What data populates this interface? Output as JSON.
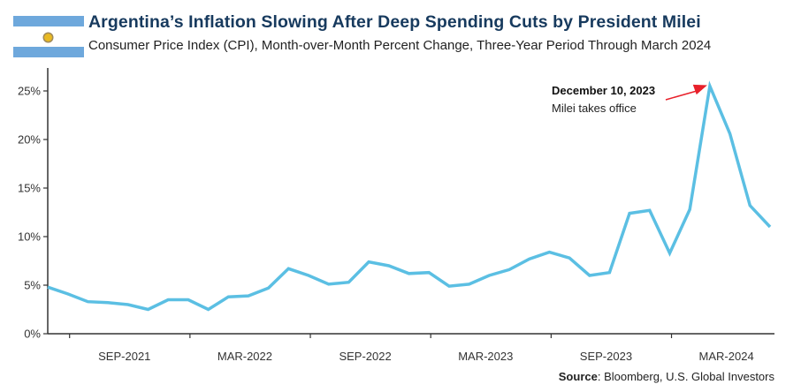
{
  "header": {
    "title": "Argentina’s Inflation Slowing After Deep Spending Cuts by President Milei",
    "subtitle": "Consumer Price Index (CPI), Month-over-Month Percent Change, Three-Year Period Through March 2024",
    "flag_icon": "argentina-flag-icon"
  },
  "colors": {
    "line": "#5bbfe3",
    "title": "#173a5e",
    "arrow": "#e8202a",
    "axis": "#333333",
    "flag_blue": "#6ea8dc",
    "flag_sun": "#e8b923"
  },
  "source": {
    "label": "Source",
    "text": ": Bloomberg, U.S. Global Investors"
  },
  "chart_data": {
    "type": "line",
    "title": "Argentina’s Inflation Slowing After Deep Spending Cuts by President Milei",
    "subtitle": "Consumer Price Index (CPI), Month-over-Month Percent Change, Three-Year Period Through March 2024",
    "xlabel": "",
    "ylabel": "",
    "ylim": [
      0,
      27
    ],
    "yticks": [
      0,
      5,
      10,
      15,
      20,
      25
    ],
    "ytick_labels": [
      "0%",
      "5%",
      "10%",
      "15%",
      "20%",
      "25%"
    ],
    "grid": false,
    "legend": "none",
    "x": [
      "Mar-2021",
      "Apr-2021",
      "May-2021",
      "Jun-2021",
      "Jul-2021",
      "Aug-2021",
      "Sep-2021",
      "Oct-2021",
      "Nov-2021",
      "Dec-2021",
      "Jan-2022",
      "Feb-2022",
      "Mar-2022",
      "Apr-2022",
      "May-2022",
      "Jun-2022",
      "Jul-2022",
      "Aug-2022",
      "Sep-2022",
      "Oct-2022",
      "Nov-2022",
      "Dec-2022",
      "Jan-2023",
      "Feb-2023",
      "Mar-2023",
      "Apr-2023",
      "May-2023",
      "Jun-2023",
      "Jul-2023",
      "Aug-2023",
      "Sep-2023",
      "Oct-2023",
      "Nov-2023",
      "Dec-2023",
      "Jan-2024",
      "Feb-2024",
      "Mar-2024"
    ],
    "series": [
      {
        "name": "CPI MoM % Change",
        "values": [
          4.8,
          4.1,
          3.3,
          3.2,
          3.0,
          2.5,
          3.5,
          3.5,
          2.5,
          3.8,
          3.9,
          4.7,
          6.7,
          6.0,
          5.1,
          5.3,
          7.4,
          7.0,
          6.2,
          6.3,
          4.9,
          5.1,
          6.0,
          6.6,
          7.7,
          8.4,
          7.8,
          6.0,
          6.3,
          12.4,
          12.7,
          8.3,
          12.8,
          25.5,
          20.6,
          13.2,
          11.0
        ]
      }
    ],
    "xtick_boundaries": [
      1,
      7,
      13,
      19,
      25,
      31
    ],
    "xtick_labels": [
      {
        "label": "SEP-2021",
        "index": 4
      },
      {
        "label": "MAR-2022",
        "index": 10
      },
      {
        "label": "SEP-2022",
        "index": 16
      },
      {
        "label": "MAR-2023",
        "index": 22
      },
      {
        "label": "SEP-2023",
        "index": 28
      },
      {
        "label": "MAR-2024",
        "index": 34
      }
    ],
    "annotations": [
      {
        "title": "December 10, 2023",
        "text": "Milei takes office",
        "target_index": 33
      }
    ]
  }
}
